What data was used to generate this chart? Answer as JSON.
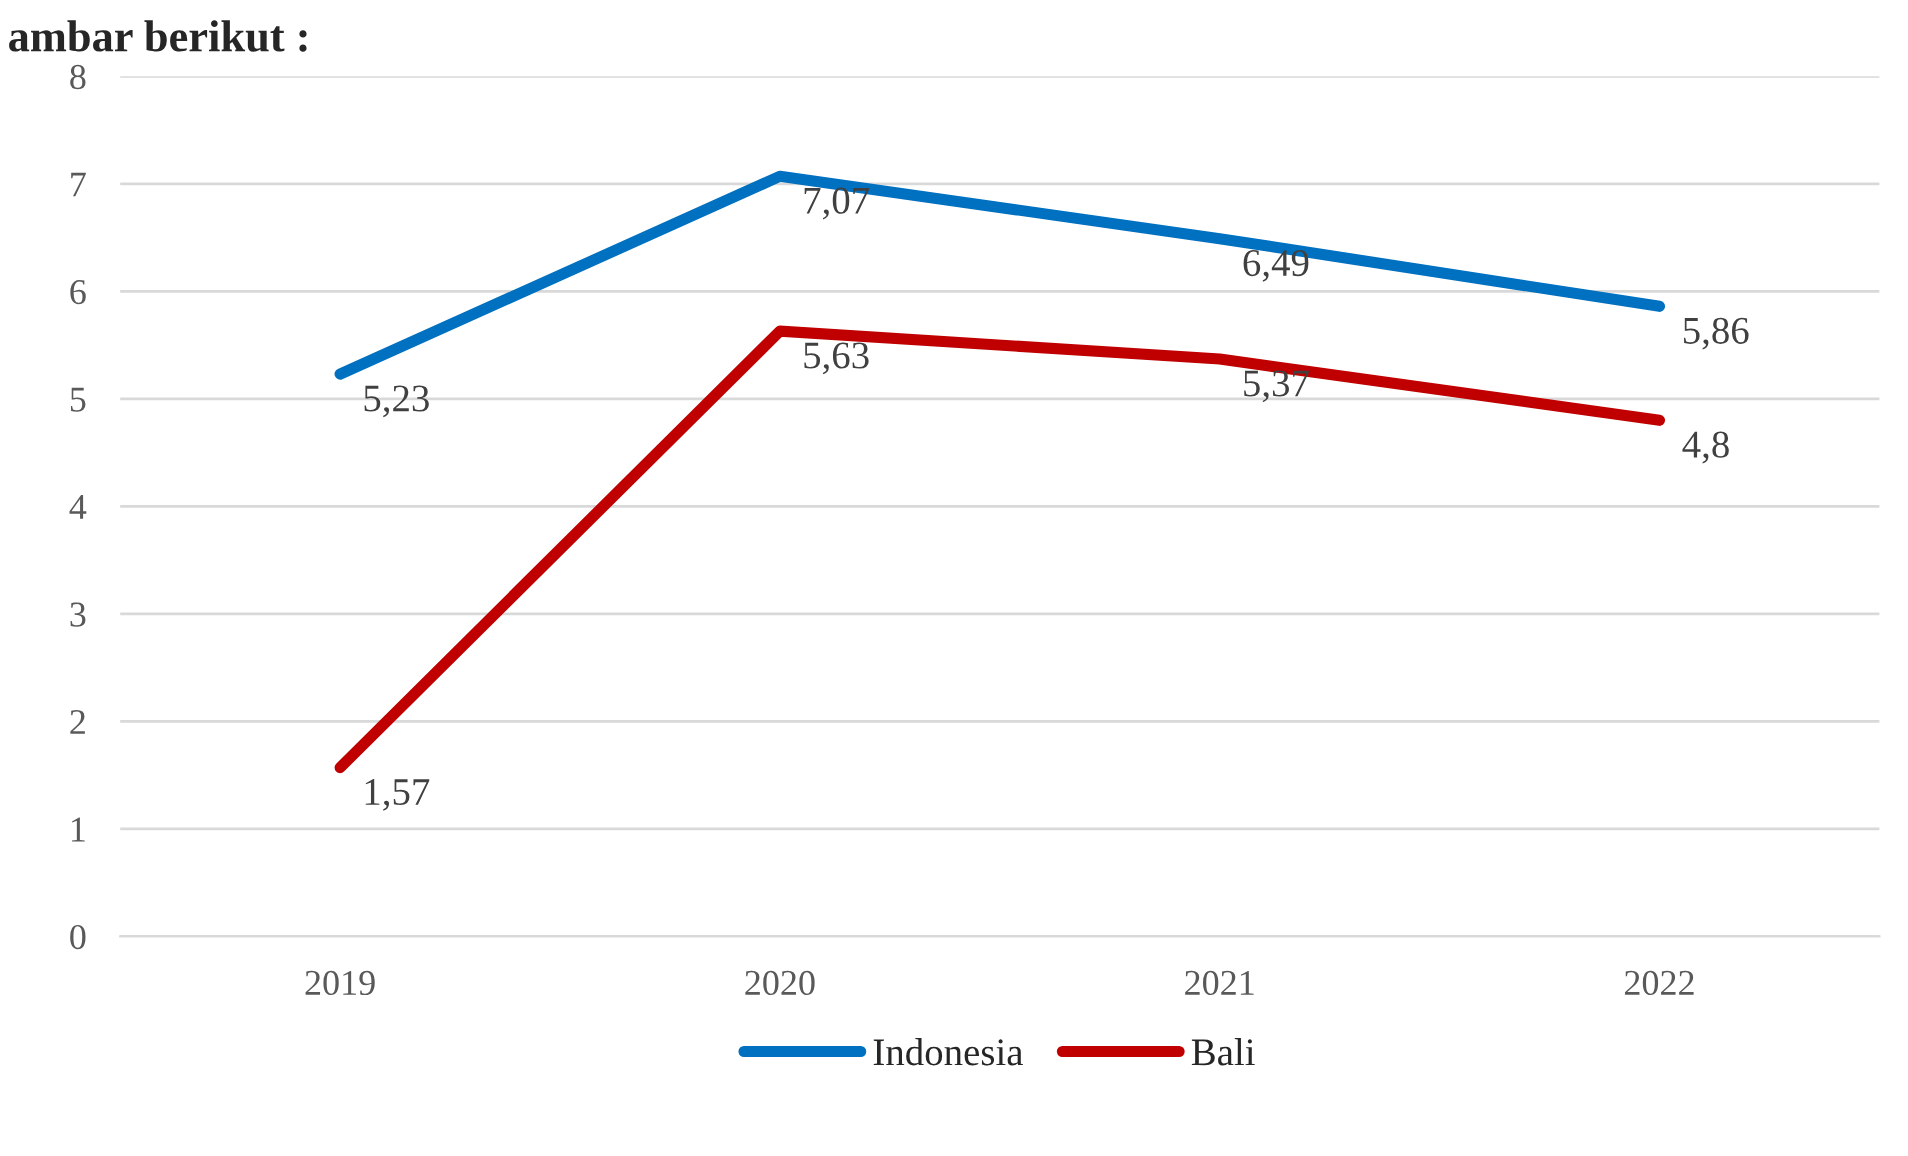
{
  "chart_data": {
    "type": "line",
    "categories": [
      "2019",
      "2020",
      "2021",
      "2022"
    ],
    "series": [
      {
        "name": "Indonesia",
        "color": "#0070c0",
        "values": [
          5.23,
          7.07,
          6.49,
          5.86
        ],
        "value_labels": [
          "5,23",
          "7,07",
          "6,49",
          "5,86"
        ]
      },
      {
        "name": "Bali",
        "color": "#c00000",
        "values": [
          1.57,
          5.63,
          5.37,
          4.8
        ],
        "value_labels": [
          "1,57",
          "5,63",
          "5,37",
          "4,8"
        ]
      }
    ],
    "ylim": [
      0,
      8
    ],
    "yticks": [
      0,
      1,
      2,
      3,
      4,
      5,
      6,
      7,
      8
    ],
    "grid": "y",
    "legend": "bottom",
    "marker": "none",
    "line_style": "solid",
    "annotations": [
      "ambar berikut :"
    ]
  }
}
